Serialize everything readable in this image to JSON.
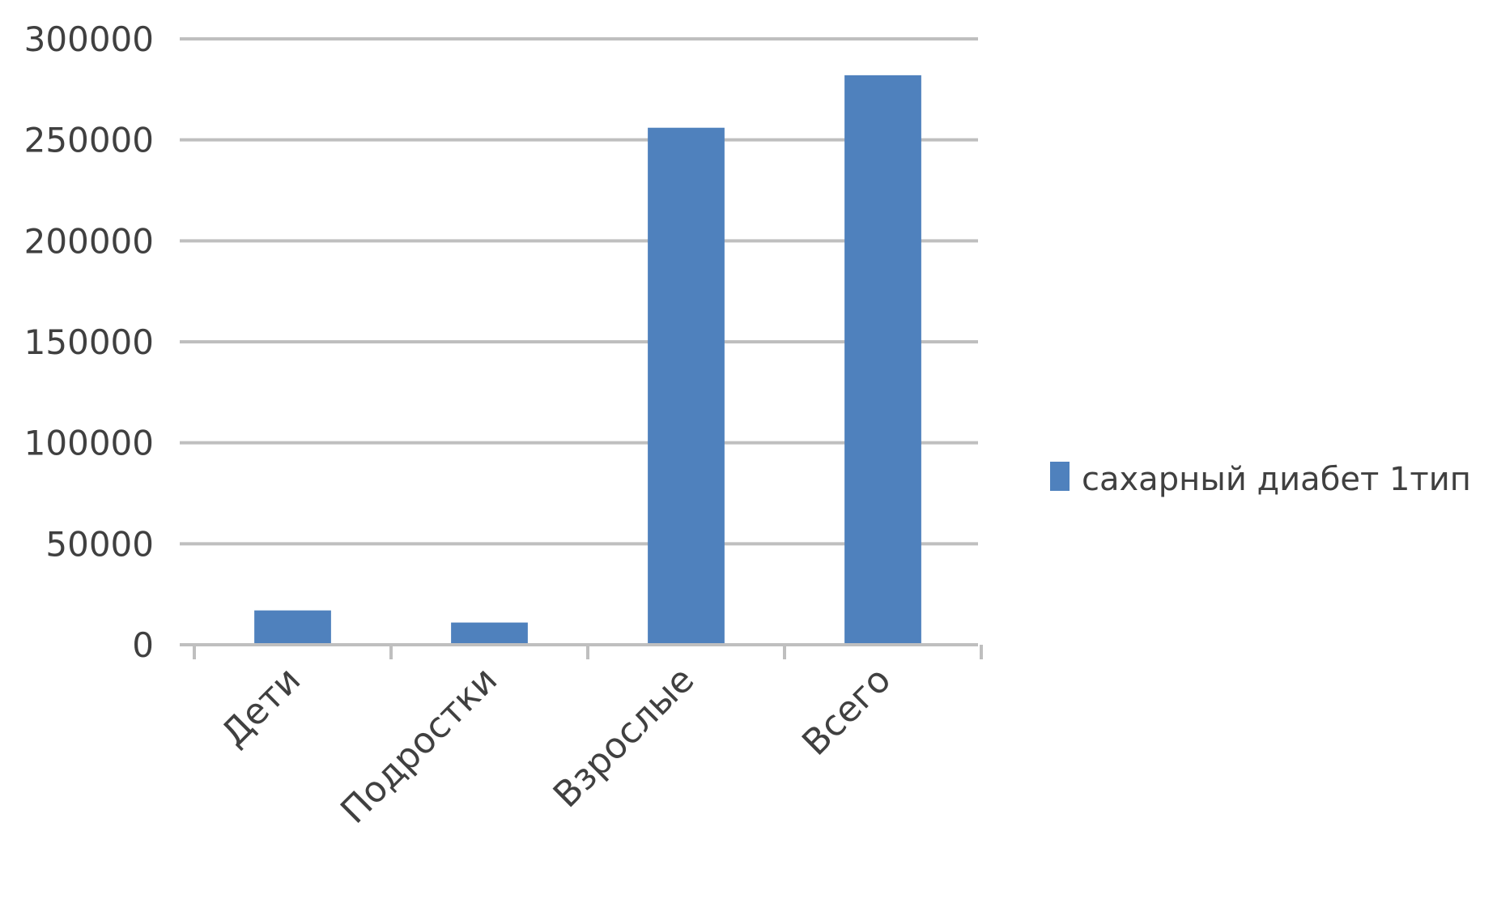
{
  "chart_data": {
    "type": "bar",
    "categories": [
      "Дети",
      "Подростки",
      "Взрослые",
      "Всего"
    ],
    "series": [
      {
        "name": "сахарный диабет 1тип",
        "values": [
          17000,
          11000,
          256000,
          282000
        ],
        "color": "#4f81bd"
      }
    ],
    "ylim": [
      0,
      300000
    ],
    "yticks": [
      0,
      50000,
      100000,
      150000,
      200000,
      250000,
      300000
    ],
    "ytick_labels": [
      "0",
      "50000",
      "100000",
      "150000",
      "200000",
      "250000",
      "300000"
    ],
    "grid": true,
    "legend_position": "right",
    "title": "",
    "xlabel": "",
    "ylabel": ""
  }
}
